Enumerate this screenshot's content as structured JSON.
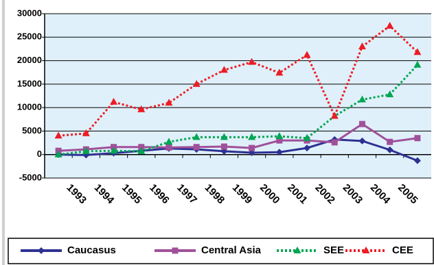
{
  "chart_data": {
    "type": "line",
    "categories": [
      "1993",
      "1994",
      "1995",
      "1996",
      "1997",
      "1998",
      "1999",
      "2000",
      "2001",
      "2002",
      "2003",
      "2004",
      "2005",
      null
    ],
    "series": [
      {
        "name": "Caucasus",
        "color": "#2e3192",
        "marker": "diamond",
        "dash": "solid",
        "values": [
          0,
          -100,
          300,
          800,
          1300,
          1100,
          700,
          400,
          500,
          1400,
          3200,
          2900,
          1000,
          -1300
        ]
      },
      {
        "name": "Central Asia",
        "color": "#a0509a",
        "marker": "square",
        "dash": "solid",
        "values": [
          800,
          1100,
          1600,
          1600,
          1500,
          1600,
          1700,
          1400,
          3000,
          3000,
          2600,
          6500,
          2700,
          3500
        ]
      },
      {
        "name": "SEE",
        "color": "#00a651",
        "marker": "triangle",
        "dash": "dotted",
        "values": [
          0,
          700,
          800,
          700,
          2700,
          3700,
          3700,
          3700,
          3900,
          3500,
          8200,
          11700,
          12800,
          19100
        ]
      },
      {
        "name": "CEE",
        "color": "#ed1c24",
        "marker": "triangle",
        "dash": "dotted",
        "values": [
          4000,
          4500,
          11200,
          9600,
          11000,
          15000,
          18000,
          19700,
          17400,
          21200,
          8200,
          23000,
          27400,
          21800
        ]
      }
    ],
    "ylim": [
      -5000,
      30000
    ],
    "yticks": [
      -5000,
      0,
      5000,
      10000,
      15000,
      20000,
      25000,
      30000
    ],
    "grid": true,
    "legend": "bottom"
  }
}
